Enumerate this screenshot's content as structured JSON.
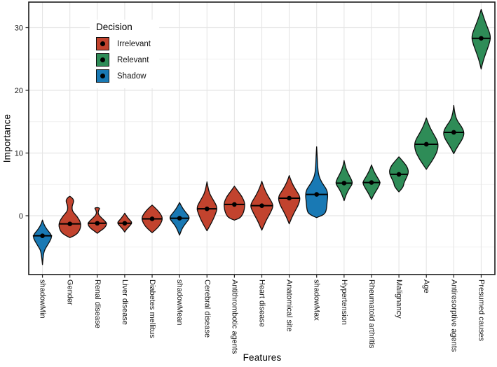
{
  "legend": {
    "title": "Decision",
    "entries": [
      {
        "label": "Irrelevant",
        "color": "#c2432e"
      },
      {
        "label": "Relevant",
        "color": "#2e8c57"
      },
      {
        "label": "Shadow",
        "color": "#1979b4"
      }
    ]
  },
  "chart_data": {
    "type": "violin",
    "xlabel": "Features",
    "ylabel": "Importance",
    "ylim": [
      -9.5,
      34.1
    ],
    "y_major_ticks": [
      0,
      10,
      20,
      30
    ],
    "y_minor_gridlines": [
      -5,
      5,
      15,
      25
    ],
    "grid": "on",
    "legend_position": "top-left-inside",
    "series": [
      {
        "feature": "shadowMin",
        "decision": "Shadow",
        "median": -3.2,
        "min": -7.8,
        "max": -0.7,
        "profile": [
          [
            -0.7,
            0
          ],
          [
            -1.3,
            0.12
          ],
          [
            -2.2,
            0.45
          ],
          [
            -3.2,
            1
          ],
          [
            -4.1,
            0.75
          ],
          [
            -5.0,
            0.38
          ],
          [
            -5.8,
            0.12
          ],
          [
            -7.8,
            0
          ]
        ],
        "w": 14
      },
      {
        "feature": "Gender",
        "decision": "Irrelevant",
        "median": -1.3,
        "min": -3.5,
        "max": 3.1,
        "profile": [
          [
            3.1,
            0
          ],
          [
            2.9,
            0.18
          ],
          [
            2.5,
            0.34
          ],
          [
            2.1,
            0.32
          ],
          [
            1.5,
            0.18
          ],
          [
            0.7,
            0.22
          ],
          [
            -0.1,
            0.65
          ],
          [
            -1.2,
            1
          ],
          [
            -2.2,
            0.92
          ],
          [
            -3.0,
            0.6
          ],
          [
            -3.5,
            0
          ]
        ],
        "w": 16
      },
      {
        "feature": "Renal disease",
        "decision": "Irrelevant",
        "median": -1.2,
        "min": -2.8,
        "max": 1.3,
        "profile": [
          [
            1.3,
            0
          ],
          [
            1.25,
            0.3
          ],
          [
            0.8,
            0.1
          ],
          [
            0.2,
            0.09
          ],
          [
            -0.45,
            0.5
          ],
          [
            -1.2,
            1
          ],
          [
            -1.9,
            0.78
          ],
          [
            -2.5,
            0.25
          ],
          [
            -2.8,
            0
          ]
        ],
        "w": 14
      },
      {
        "feature": "Liver disease",
        "decision": "Irrelevant",
        "median": -1.2,
        "min": -2.6,
        "max": 0.4,
        "profile": [
          [
            0.4,
            0
          ],
          [
            0.1,
            0.15
          ],
          [
            -0.5,
            0.5
          ],
          [
            -1.1,
            1
          ],
          [
            -1.7,
            0.6
          ],
          [
            -2.2,
            0.2
          ],
          [
            -2.6,
            0
          ]
        ],
        "w": 11
      },
      {
        "feature": "Diabetes mellitus",
        "decision": "Irrelevant",
        "median": -0.5,
        "min": -2.7,
        "max": 1.7,
        "profile": [
          [
            1.7,
            0
          ],
          [
            1.1,
            0.4
          ],
          [
            0.3,
            0.8
          ],
          [
            -0.4,
            1
          ],
          [
            -1.2,
            0.85
          ],
          [
            -2.0,
            0.5
          ],
          [
            -2.7,
            0
          ]
        ],
        "w": 15
      },
      {
        "feature": "shadowMean",
        "decision": "Shadow",
        "median": -0.4,
        "min": -3.1,
        "max": 2.1,
        "profile": [
          [
            2.1,
            0
          ],
          [
            1.4,
            0.22
          ],
          [
            0.6,
            0.55
          ],
          [
            -0.3,
            1
          ],
          [
            -1.1,
            0.65
          ],
          [
            -1.9,
            0.28
          ],
          [
            -3.1,
            0
          ]
        ],
        "w": 15
      },
      {
        "feature": "Cerebral disease",
        "decision": "Irrelevant",
        "median": 1.1,
        "min": -2.4,
        "max": 5.4,
        "profile": [
          [
            5.4,
            0
          ],
          [
            4.5,
            0.1
          ],
          [
            3.5,
            0.25
          ],
          [
            2.5,
            0.6
          ],
          [
            1.3,
            1
          ],
          [
            0.2,
            0.8
          ],
          [
            -1.1,
            0.45
          ],
          [
            -2.4,
            0
          ]
        ],
        "w": 15
      },
      {
        "feature": "Antithrombotic agents",
        "decision": "Irrelevant",
        "median": 1.8,
        "min": -0.7,
        "max": 4.7,
        "profile": [
          [
            4.7,
            0
          ],
          [
            4.0,
            0.3
          ],
          [
            3.0,
            0.75
          ],
          [
            2.0,
            1
          ],
          [
            1.0,
            0.95
          ],
          [
            0.2,
            0.8
          ],
          [
            -0.4,
            0.5
          ],
          [
            -0.7,
            0
          ]
        ],
        "w": 15
      },
      {
        "feature": "Heart disease",
        "decision": "Irrelevant",
        "median": 1.6,
        "min": -2.3,
        "max": 5.5,
        "profile": [
          [
            5.5,
            0
          ],
          [
            4.5,
            0.18
          ],
          [
            3.3,
            0.5
          ],
          [
            2.0,
            0.95
          ],
          [
            1.4,
            1
          ],
          [
            0.4,
            0.75
          ],
          [
            -0.7,
            0.4
          ],
          [
            -1.6,
            0.18
          ],
          [
            -2.3,
            0
          ]
        ],
        "w": 16
      },
      {
        "feature": "Anatomical site",
        "decision": "Irrelevant",
        "median": 2.8,
        "min": -1.3,
        "max": 6.4,
        "profile": [
          [
            6.4,
            0
          ],
          [
            5.3,
            0.22
          ],
          [
            4.2,
            0.55
          ],
          [
            3.0,
            1
          ],
          [
            1.8,
            0.85
          ],
          [
            0.7,
            0.5
          ],
          [
            -0.4,
            0.2
          ],
          [
            -1.3,
            0
          ]
        ],
        "w": 16
      },
      {
        "feature": "shadowMax",
        "decision": "Shadow",
        "median": 3.4,
        "min": -0.3,
        "max": 11.0,
        "profile": [
          [
            11,
            0
          ],
          [
            9.5,
            0.05
          ],
          [
            8,
            0.08
          ],
          [
            6.5,
            0.16
          ],
          [
            5.3,
            0.45
          ],
          [
            4.2,
            0.9
          ],
          [
            3.3,
            1
          ],
          [
            2.2,
            0.93
          ],
          [
            1.0,
            0.88
          ],
          [
            0.2,
            0.7
          ],
          [
            -0.3,
            0
          ]
        ],
        "w": 16
      },
      {
        "feature": "Hypertension",
        "decision": "Relevant",
        "median": 5.2,
        "min": 2.4,
        "max": 8.8,
        "profile": [
          [
            8.8,
            0
          ],
          [
            7.8,
            0.15
          ],
          [
            6.8,
            0.45
          ],
          [
            5.7,
            0.9
          ],
          [
            5.1,
            1
          ],
          [
            4.3,
            0.6
          ],
          [
            3.4,
            0.25
          ],
          [
            2.4,
            0
          ]
        ],
        "w": 12
      },
      {
        "feature": "Rheumatoid arthritis",
        "decision": "Relevant",
        "median": 5.3,
        "min": 2.6,
        "max": 8.1,
        "profile": [
          [
            8.1,
            0
          ],
          [
            7.2,
            0.22
          ],
          [
            6.2,
            0.6
          ],
          [
            5.3,
            1
          ],
          [
            4.4,
            0.7
          ],
          [
            3.5,
            0.3
          ],
          [
            2.6,
            0
          ]
        ],
        "w": 13
      },
      {
        "feature": "Malignancy",
        "decision": "Relevant",
        "median": 6.6,
        "min": 3.8,
        "max": 9.4,
        "profile": [
          [
            9.4,
            0
          ],
          [
            8.7,
            0.4
          ],
          [
            7.8,
            0.85
          ],
          [
            6.9,
            1
          ],
          [
            6.0,
            0.75
          ],
          [
            5.2,
            0.5
          ],
          [
            4.6,
            0.45
          ],
          [
            3.8,
            0
          ]
        ],
        "w": 14
      },
      {
        "feature": "Age",
        "decision": "Relevant",
        "median": 11.4,
        "min": 7.4,
        "max": 15.6,
        "profile": [
          [
            15.6,
            0
          ],
          [
            14.4,
            0.22
          ],
          [
            13.2,
            0.55
          ],
          [
            12.0,
            0.92
          ],
          [
            11.2,
            1
          ],
          [
            10.2,
            0.9
          ],
          [
            9.1,
            0.6
          ],
          [
            8.2,
            0.28
          ],
          [
            7.4,
            0
          ]
        ],
        "w": 17
      },
      {
        "feature": "Antiresorptive agents",
        "decision": "Relevant",
        "median": 13.3,
        "min": 9.9,
        "max": 17.6,
        "profile": [
          [
            17.6,
            0
          ],
          [
            16.4,
            0.08
          ],
          [
            15.2,
            0.3
          ],
          [
            14.2,
            0.75
          ],
          [
            13.3,
            1
          ],
          [
            12.4,
            0.88
          ],
          [
            11.4,
            0.5
          ],
          [
            10.5,
            0.18
          ],
          [
            9.9,
            0
          ]
        ],
        "w": 15
      },
      {
        "feature": "Presumed causes",
        "decision": "Relevant",
        "median": 28.3,
        "min": 23.4,
        "max": 32.9,
        "profile": [
          [
            32.9,
            0
          ],
          [
            31.5,
            0.28
          ],
          [
            30.2,
            0.6
          ],
          [
            28.6,
            1
          ],
          [
            27.3,
            0.8
          ],
          [
            26.0,
            0.48
          ],
          [
            24.6,
            0.18
          ],
          [
            23.4,
            0
          ]
        ],
        "w": 14
      }
    ]
  }
}
